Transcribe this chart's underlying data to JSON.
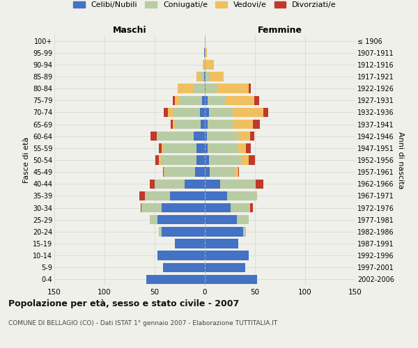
{
  "age_groups": [
    "0-4",
    "5-9",
    "10-14",
    "15-19",
    "20-24",
    "25-29",
    "30-34",
    "35-39",
    "40-44",
    "45-49",
    "50-54",
    "55-59",
    "60-64",
    "65-69",
    "70-74",
    "75-79",
    "80-84",
    "85-89",
    "90-94",
    "95-99",
    "100+"
  ],
  "birth_years": [
    "2002-2006",
    "1997-2001",
    "1992-1996",
    "1987-1991",
    "1982-1986",
    "1977-1981",
    "1972-1976",
    "1967-1971",
    "1962-1966",
    "1957-1961",
    "1952-1956",
    "1947-1951",
    "1942-1946",
    "1937-1941",
    "1932-1936",
    "1927-1931",
    "1922-1926",
    "1917-1921",
    "1912-1916",
    "1907-1911",
    "≤ 1906"
  ],
  "maschi": {
    "celibi": [
      58,
      42,
      47,
      30,
      43,
      47,
      43,
      35,
      20,
      10,
      8,
      8,
      11,
      4,
      5,
      3,
      0,
      1,
      0,
      1,
      0
    ],
    "coniugati": [
      0,
      0,
      0,
      0,
      2,
      8,
      20,
      25,
      30,
      30,
      36,
      34,
      37,
      26,
      26,
      22,
      12,
      3,
      0,
      0,
      0
    ],
    "vedovi": [
      0,
      0,
      0,
      0,
      1,
      0,
      0,
      0,
      0,
      1,
      2,
      1,
      0,
      2,
      6,
      5,
      15,
      4,
      2,
      0,
      0
    ],
    "divorziati": [
      0,
      0,
      0,
      0,
      0,
      0,
      1,
      5,
      5,
      1,
      3,
      3,
      6,
      2,
      4,
      2,
      0,
      0,
      0,
      0,
      0
    ]
  },
  "femmine": {
    "nubili": [
      52,
      40,
      44,
      33,
      38,
      32,
      26,
      22,
      15,
      5,
      4,
      3,
      2,
      3,
      4,
      3,
      1,
      1,
      0,
      0,
      0
    ],
    "coniugate": [
      0,
      0,
      0,
      0,
      3,
      12,
      18,
      30,
      35,
      25,
      32,
      30,
      31,
      25,
      24,
      18,
      11,
      4,
      1,
      0,
      0
    ],
    "vedove": [
      0,
      0,
      0,
      0,
      0,
      0,
      1,
      0,
      1,
      3,
      8,
      8,
      12,
      20,
      30,
      28,
      32,
      14,
      8,
      2,
      1
    ],
    "divorziate": [
      0,
      0,
      0,
      0,
      0,
      0,
      3,
      0,
      7,
      1,
      6,
      5,
      4,
      7,
      5,
      5,
      2,
      0,
      0,
      0,
      0
    ]
  },
  "colors": {
    "celibi_nubili": "#4472c4",
    "coniugati_e": "#b8cca4",
    "vedovi_e": "#f0c060",
    "divorziati_e": "#c0392b"
  },
  "title": "Popolazione per età, sesso e stato civile - 2007",
  "subtitle": "COMUNE DI BELLAGIO (CO) - Dati ISTAT 1° gennaio 2007 - Elaborazione TUTTITALIA.IT",
  "xlabel_left": "Maschi",
  "xlabel_right": "Femmine",
  "ylabel_left": "Fasce di età",
  "ylabel_right": "Anni di nascita",
  "xlim": 150,
  "background_color": "#f0f0eb",
  "grid_color": "#cccccc"
}
